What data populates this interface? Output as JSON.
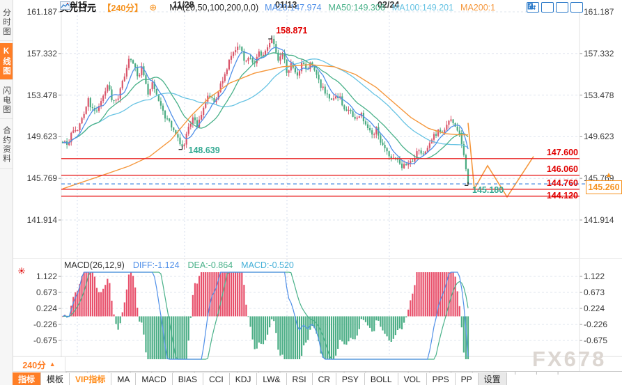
{
  "sidebar": {
    "tabs": [
      {
        "label": "分时图",
        "active": false
      },
      {
        "label": "K线图",
        "active": true
      },
      {
        "label": "闪电图",
        "active": false
      },
      {
        "label": "合约资料",
        "active": false
      }
    ]
  },
  "header": {
    "symbol": "美元日元",
    "period_tag": "【240分】",
    "plus_glyph": "⊕",
    "ma_formula": "MA(20,50,100,200,0,0)",
    "ma_values": [
      {
        "label": "MA20:147.974",
        "color": "#4f8fe8"
      },
      {
        "label": "MA50:149.306",
        "color": "#49b189"
      },
      {
        "label": "MA100:149.201",
        "color": "#67c3e3"
      },
      {
        "label": "MA200:1",
        "color": "#f5973c"
      }
    ]
  },
  "toolbar_icons": [
    {
      "name": "crosshair-move-icon"
    },
    {
      "name": "scale-price-axis-icon"
    },
    {
      "name": "scale-time-axis-icon"
    },
    {
      "name": "pan-right-icon"
    }
  ],
  "macd": {
    "title": "MACD(26,12,9)",
    "diff": "DIFF:-1.124",
    "dea": "DEA:-0.864",
    "macd": "MACD:-0.520",
    "diff_color": "#4f8fe8",
    "dea_color": "#49b189",
    "macd_color": "#45b0d8"
  },
  "xaxis": {
    "period_label": "240分",
    "period_arrow": "▲",
    "labels": [
      "10/15",
      "11/28",
      "01/13",
      "02/24"
    ]
  },
  "pricebox": {
    "value": "145.260",
    "arrow": "▲"
  },
  "bottom_tabs": [
    {
      "label": "指标",
      "style": "active"
    },
    {
      "label": "模板",
      "style": "normal"
    },
    {
      "label": "VIP指标",
      "style": "vip"
    },
    {
      "label": "MA",
      "style": "normal"
    },
    {
      "label": "MACD",
      "style": "normal"
    },
    {
      "label": "BIAS",
      "style": "normal"
    },
    {
      "label": "CCI",
      "style": "normal"
    },
    {
      "label": "KDJ",
      "style": "normal"
    },
    {
      "label": "LW&",
      "style": "normal"
    },
    {
      "label": "RSI",
      "style": "normal"
    },
    {
      "label": "CR",
      "style": "normal"
    },
    {
      "label": "PSY",
      "style": "normal"
    },
    {
      "label": "BOLL",
      "style": "normal"
    },
    {
      "label": "VOL",
      "style": "normal"
    },
    {
      "label": "PPS",
      "style": "normal"
    },
    {
      "label": "PP",
      "style": "normal"
    },
    {
      "label": "设置",
      "style": "settings"
    }
  ],
  "watermark": {
    "text": "FX678"
  },
  "colors": {
    "accent_orange": "#ff7e26",
    "price_orange": "#f6921e",
    "up_red": "#d9566b",
    "down_green": "#4aab82",
    "level_red": "#e82020",
    "level_label_red": "#e00000",
    "ma20_blue": "#4f8fe8",
    "ma50_green": "#49b189",
    "ma100_cyan": "#67c3e3",
    "ma200_orange": "#f5973c",
    "annotation_teal": "#35aa93",
    "hist_red": "#e8506b",
    "hist_green": "#4cae86",
    "icon_blue": "#2878c8",
    "dashed_blue": "#3f86e0",
    "sun_red": "#e01010"
  },
  "chart_data": {
    "type": "candlestick",
    "title": "美元日元 240分 K线图 + MACD",
    "y_axis_ticks": [
      161.187,
      157.332,
      153.478,
      149.623,
      145.769,
      141.914
    ],
    "x_axis_labels": [
      "10/15",
      "11/28",
      "01/13",
      "02/24"
    ],
    "key_points": {
      "high": 158.871,
      "swing_low": 148.639,
      "recent_low": 145.18,
      "last_price": 145.26
    },
    "levels": [
      147.6,
      146.06,
      144.76,
      144.12
    ],
    "dashed_price_line": 145.26,
    "ma_latest": {
      "MA20": 147.974,
      "MA50": 149.306,
      "MA100": 149.201
    },
    "price_path": [
      [
        90,
        149.3
      ],
      [
        96,
        148.8
      ],
      [
        104,
        150.0
      ],
      [
        112,
        150.4
      ],
      [
        120,
        151.6
      ],
      [
        127,
        153.0
      ],
      [
        134,
        151.9
      ],
      [
        142,
        152.4
      ],
      [
        150,
        153.6
      ],
      [
        155,
        154.4
      ],
      [
        162,
        152.7
      ],
      [
        170,
        153.3
      ],
      [
        178,
        155.2
      ],
      [
        186,
        156.9
      ],
      [
        192,
        156.3
      ],
      [
        198,
        155.1
      ],
      [
        204,
        156.0
      ],
      [
        212,
        153.7
      ],
      [
        220,
        154.6
      ],
      [
        228,
        153.0
      ],
      [
        236,
        151.6
      ],
      [
        244,
        150.9
      ],
      [
        252,
        150.1
      ],
      [
        258,
        149.2
      ],
      [
        263,
        148.8
      ],
      [
        270,
        150.2
      ],
      [
        277,
        151.3
      ],
      [
        284,
        150.6
      ],
      [
        292,
        152.2
      ],
      [
        300,
        153.6
      ],
      [
        308,
        152.9
      ],
      [
        315,
        154.1
      ],
      [
        322,
        155.1
      ],
      [
        330,
        156.8
      ],
      [
        338,
        157.6
      ],
      [
        345,
        157.9
      ],
      [
        352,
        156.3
      ],
      [
        358,
        157.2
      ],
      [
        365,
        156.1
      ],
      [
        372,
        157.5
      ],
      [
        379,
        157.1
      ],
      [
        386,
        158.4
      ],
      [
        390,
        158.6
      ],
      [
        394,
        158.1
      ],
      [
        400,
        156.6
      ],
      [
        406,
        157.4
      ],
      [
        412,
        155.6
      ],
      [
        419,
        156.4
      ],
      [
        426,
        155.3
      ],
      [
        433,
        156.4
      ],
      [
        440,
        155.9
      ],
      [
        447,
        156.4
      ],
      [
        454,
        155.3
      ],
      [
        462,
        154.2
      ],
      [
        470,
        153.6
      ],
      [
        478,
        152.9
      ],
      [
        486,
        153.5
      ],
      [
        494,
        152.4
      ],
      [
        502,
        151.9
      ],
      [
        510,
        151.3
      ],
      [
        518,
        151.9
      ],
      [
        526,
        150.5
      ],
      [
        534,
        149.8
      ],
      [
        541,
        150.4
      ],
      [
        548,
        149.0
      ],
      [
        555,
        148.3
      ],
      [
        562,
        147.4
      ],
      [
        570,
        147.7
      ],
      [
        578,
        146.8
      ],
      [
        586,
        147.2
      ],
      [
        594,
        147.6
      ],
      [
        601,
        148.3
      ],
      [
        608,
        147.8
      ],
      [
        615,
        148.9
      ],
      [
        622,
        149.6
      ],
      [
        629,
        150.2
      ],
      [
        636,
        150.0
      ],
      [
        643,
        150.9
      ],
      [
        650,
        151.2
      ],
      [
        655,
        150.3
      ],
      [
        660,
        149.9
      ],
      [
        664,
        148.6
      ],
      [
        668,
        146.8
      ],
      [
        672,
        145.4
      ]
    ],
    "ma200_path": [
      [
        90,
        144.8
      ],
      [
        140,
        145.9
      ],
      [
        185,
        146.9
      ],
      [
        215,
        147.8
      ],
      [
        245,
        149.3
      ],
      [
        275,
        151.6
      ],
      [
        300,
        153.2
      ],
      [
        330,
        154.6
      ],
      [
        365,
        155.5
      ],
      [
        405,
        156.1
      ],
      [
        445,
        156.3
      ],
      [
        480,
        156.1
      ],
      [
        510,
        155.4
      ],
      [
        540,
        154.2
      ],
      [
        565,
        152.8
      ],
      [
        590,
        151.4
      ],
      [
        615,
        150.4
      ],
      [
        640,
        149.9
      ],
      [
        660,
        149.8
      ],
      [
        672,
        149.8
      ]
    ],
    "forecast_zigzag": [
      [
        672,
        150.9
      ],
      [
        681,
        144.8
      ],
      [
        700,
        146.95
      ],
      [
        728,
        144.05
      ],
      [
        766,
        147.8
      ]
    ],
    "macd_panel": {
      "type": "macd",
      "params": [
        26,
        12,
        9
      ],
      "diff": -1.124,
      "dea": -0.864,
      "macd": -0.52,
      "y_ticks": [
        1.122,
        0.673,
        0.224,
        -0.226,
        -0.675
      ]
    }
  }
}
